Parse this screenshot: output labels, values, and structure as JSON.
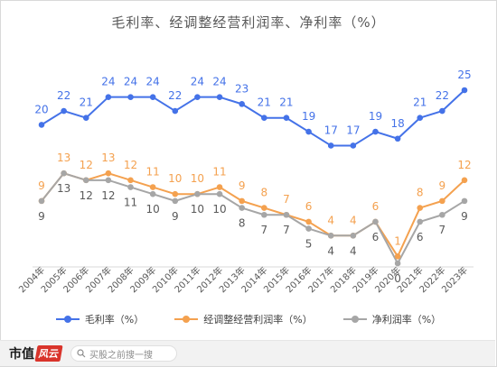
{
  "title": "毛利率、经调整经营利润率、净利率（%）",
  "chart_data": {
    "type": "line",
    "categories": [
      "2004年",
      "2005年",
      "2006年",
      "2007年",
      "2008年",
      "2009年",
      "2010年",
      "2011年",
      "2012年",
      "2013年",
      "2014年",
      "2015年",
      "2016年",
      "2017年",
      "2018年",
      "2019年",
      "2020年",
      "2021年",
      "2022年",
      "2023年"
    ],
    "ylim": [
      0,
      25
    ],
    "series": [
      {
        "name": "毛利率（%）",
        "color": "#4472e8",
        "values": [
          20,
          22,
          21,
          24,
          24,
          24,
          22,
          24,
          24,
          23,
          21,
          21,
          19,
          17,
          17,
          19,
          18,
          21,
          22,
          25
        ]
      },
      {
        "name": "经调整经营利润率（%）",
        "color": "#f4a14f",
        "values": [
          9,
          13,
          12,
          13,
          12,
          11,
          10,
          10,
          11,
          9,
          8,
          7,
          6,
          4,
          4,
          6,
          1,
          8,
          9,
          12
        ]
      },
      {
        "name": "净利润率（%）",
        "color": "#a6a6a6",
        "values": [
          9,
          13,
          12,
          12,
          11,
          10,
          9,
          10,
          10,
          8,
          7,
          7,
          5,
          4,
          4,
          6,
          0,
          6,
          7,
          9
        ]
      }
    ]
  },
  "footer": {
    "brand_text": "市值",
    "brand_mark": "风云",
    "search_placeholder": "买股之前搜一搜"
  },
  "icons": {
    "search": "search-icon"
  }
}
